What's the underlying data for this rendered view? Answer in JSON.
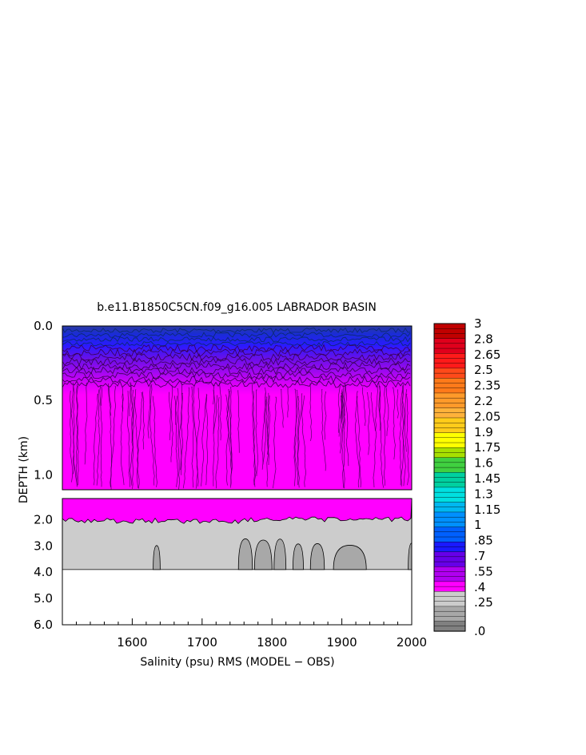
{
  "chart_data": {
    "type": "heatmap",
    "title": "b.e11.B1850C5CN.f09_g16.005 LABRADOR BASIN",
    "xlabel": "Salinity (psu) RMS (MODEL − OBS)",
    "ylabel": "DEPTH (km)",
    "xlim": [
      1500,
      2000
    ],
    "x_ticks": [
      "1600",
      "1700",
      "1800",
      "1900",
      "2000"
    ],
    "upper_panel": {
      "ylim": [
        0.0,
        1.1
      ],
      "y_ticks": [
        "0.0",
        "0.5",
        "1.0"
      ]
    },
    "lower_panel": {
      "ylim": [
        1.2,
        6.0
      ],
      "y_ticks": [
        "2.0",
        "3.0",
        "4.0",
        "5.0",
        "6.0"
      ]
    },
    "data_bottom_depth_km": 3.9,
    "colorbar": {
      "label_values": [
        "3",
        "2.8",
        "2.65",
        "2.5",
        "2.35",
        "2.2",
        "2.05",
        "1.9",
        "1.75",
        "1.6",
        "1.45",
        "1.3",
        "1.15",
        "1",
        ".85",
        ".7",
        ".55",
        ".4",
        ".25",
        ".0"
      ],
      "colors": [
        "#c00000",
        "#e0001c",
        "#ff1a1a",
        "#ff4a1a",
        "#ff7a1a",
        "#ff9a2a",
        "#ffb23a",
        "#ffcc1a",
        "#ffff00",
        "#a8e000",
        "#40d040",
        "#00d0a0",
        "#00e0e0",
        "#00b8f0",
        "#0090ff",
        "#0060ff",
        "#1a1aff",
        "#6600e8",
        "#b000f0",
        "#ff00ff",
        "#cccccc",
        "#a8a8a8",
        "#808080"
      ]
    }
  }
}
